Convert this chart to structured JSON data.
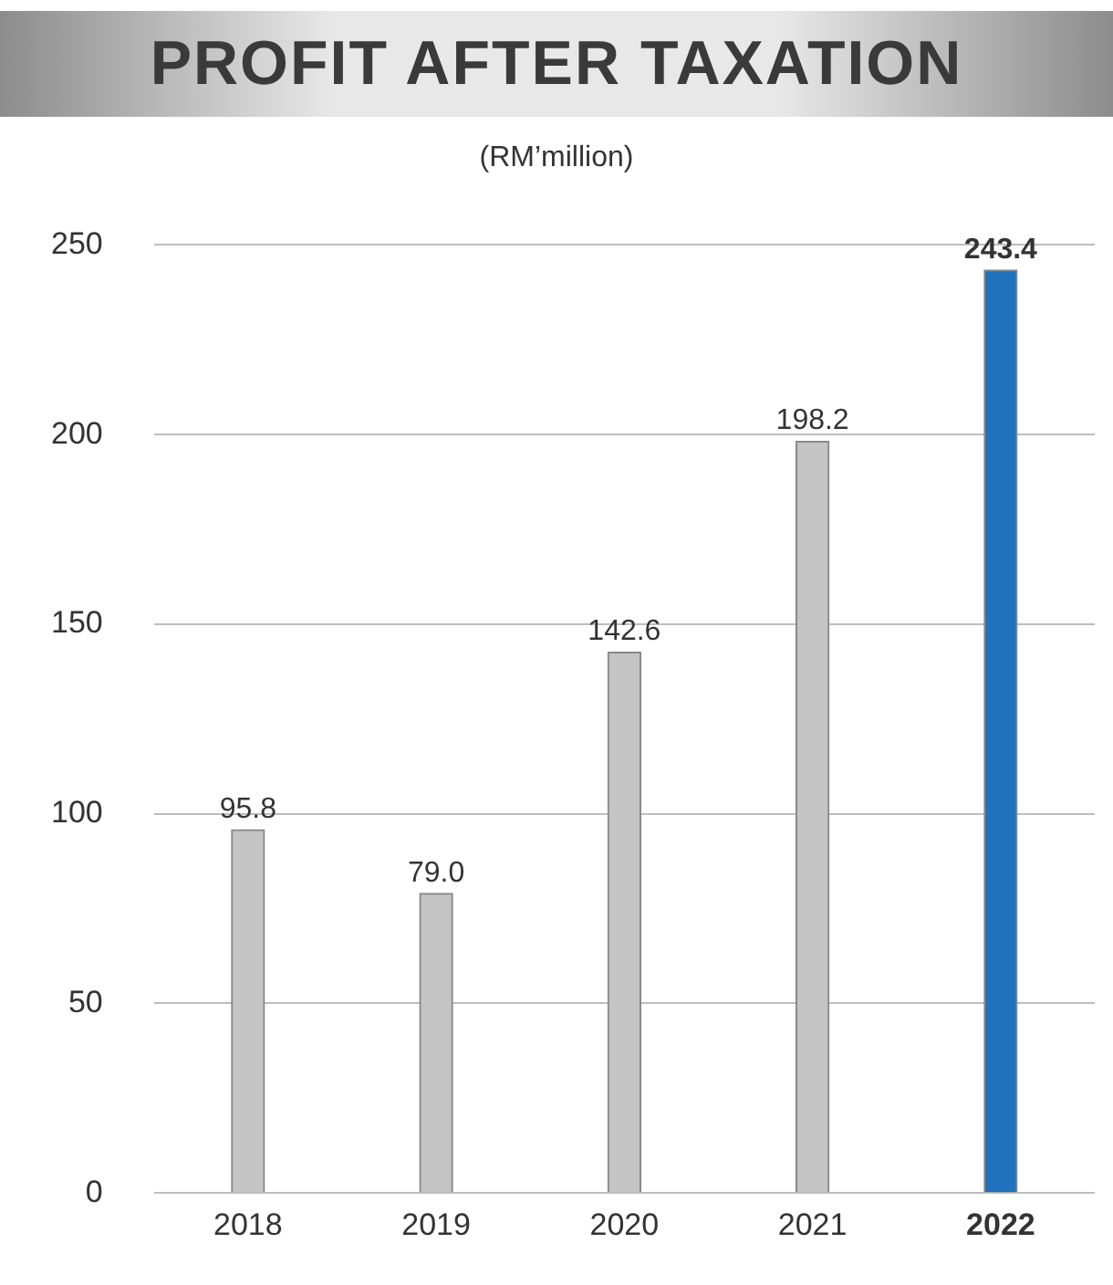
{
  "chart_data": {
    "type": "bar",
    "title": "PROFIT AFTER TAXATION",
    "subtitle": "(RM’million)",
    "categories": [
      "2018",
      "2019",
      "2020",
      "2021",
      "2022"
    ],
    "values": [
      95.8,
      79.0,
      142.6,
      198.2,
      243.4
    ],
    "value_labels": [
      "95.8",
      "79.0",
      "142.6",
      "198.2",
      "243.4"
    ],
    "colors": [
      "#c4c4c4",
      "#c4c4c4",
      "#c4c4c4",
      "#c4c4c4",
      "#1f72bb"
    ],
    "ylim": [
      0,
      250
    ],
    "yticks": [
      0,
      50,
      100,
      150,
      200,
      250
    ],
    "grid": "y",
    "legend": false
  }
}
